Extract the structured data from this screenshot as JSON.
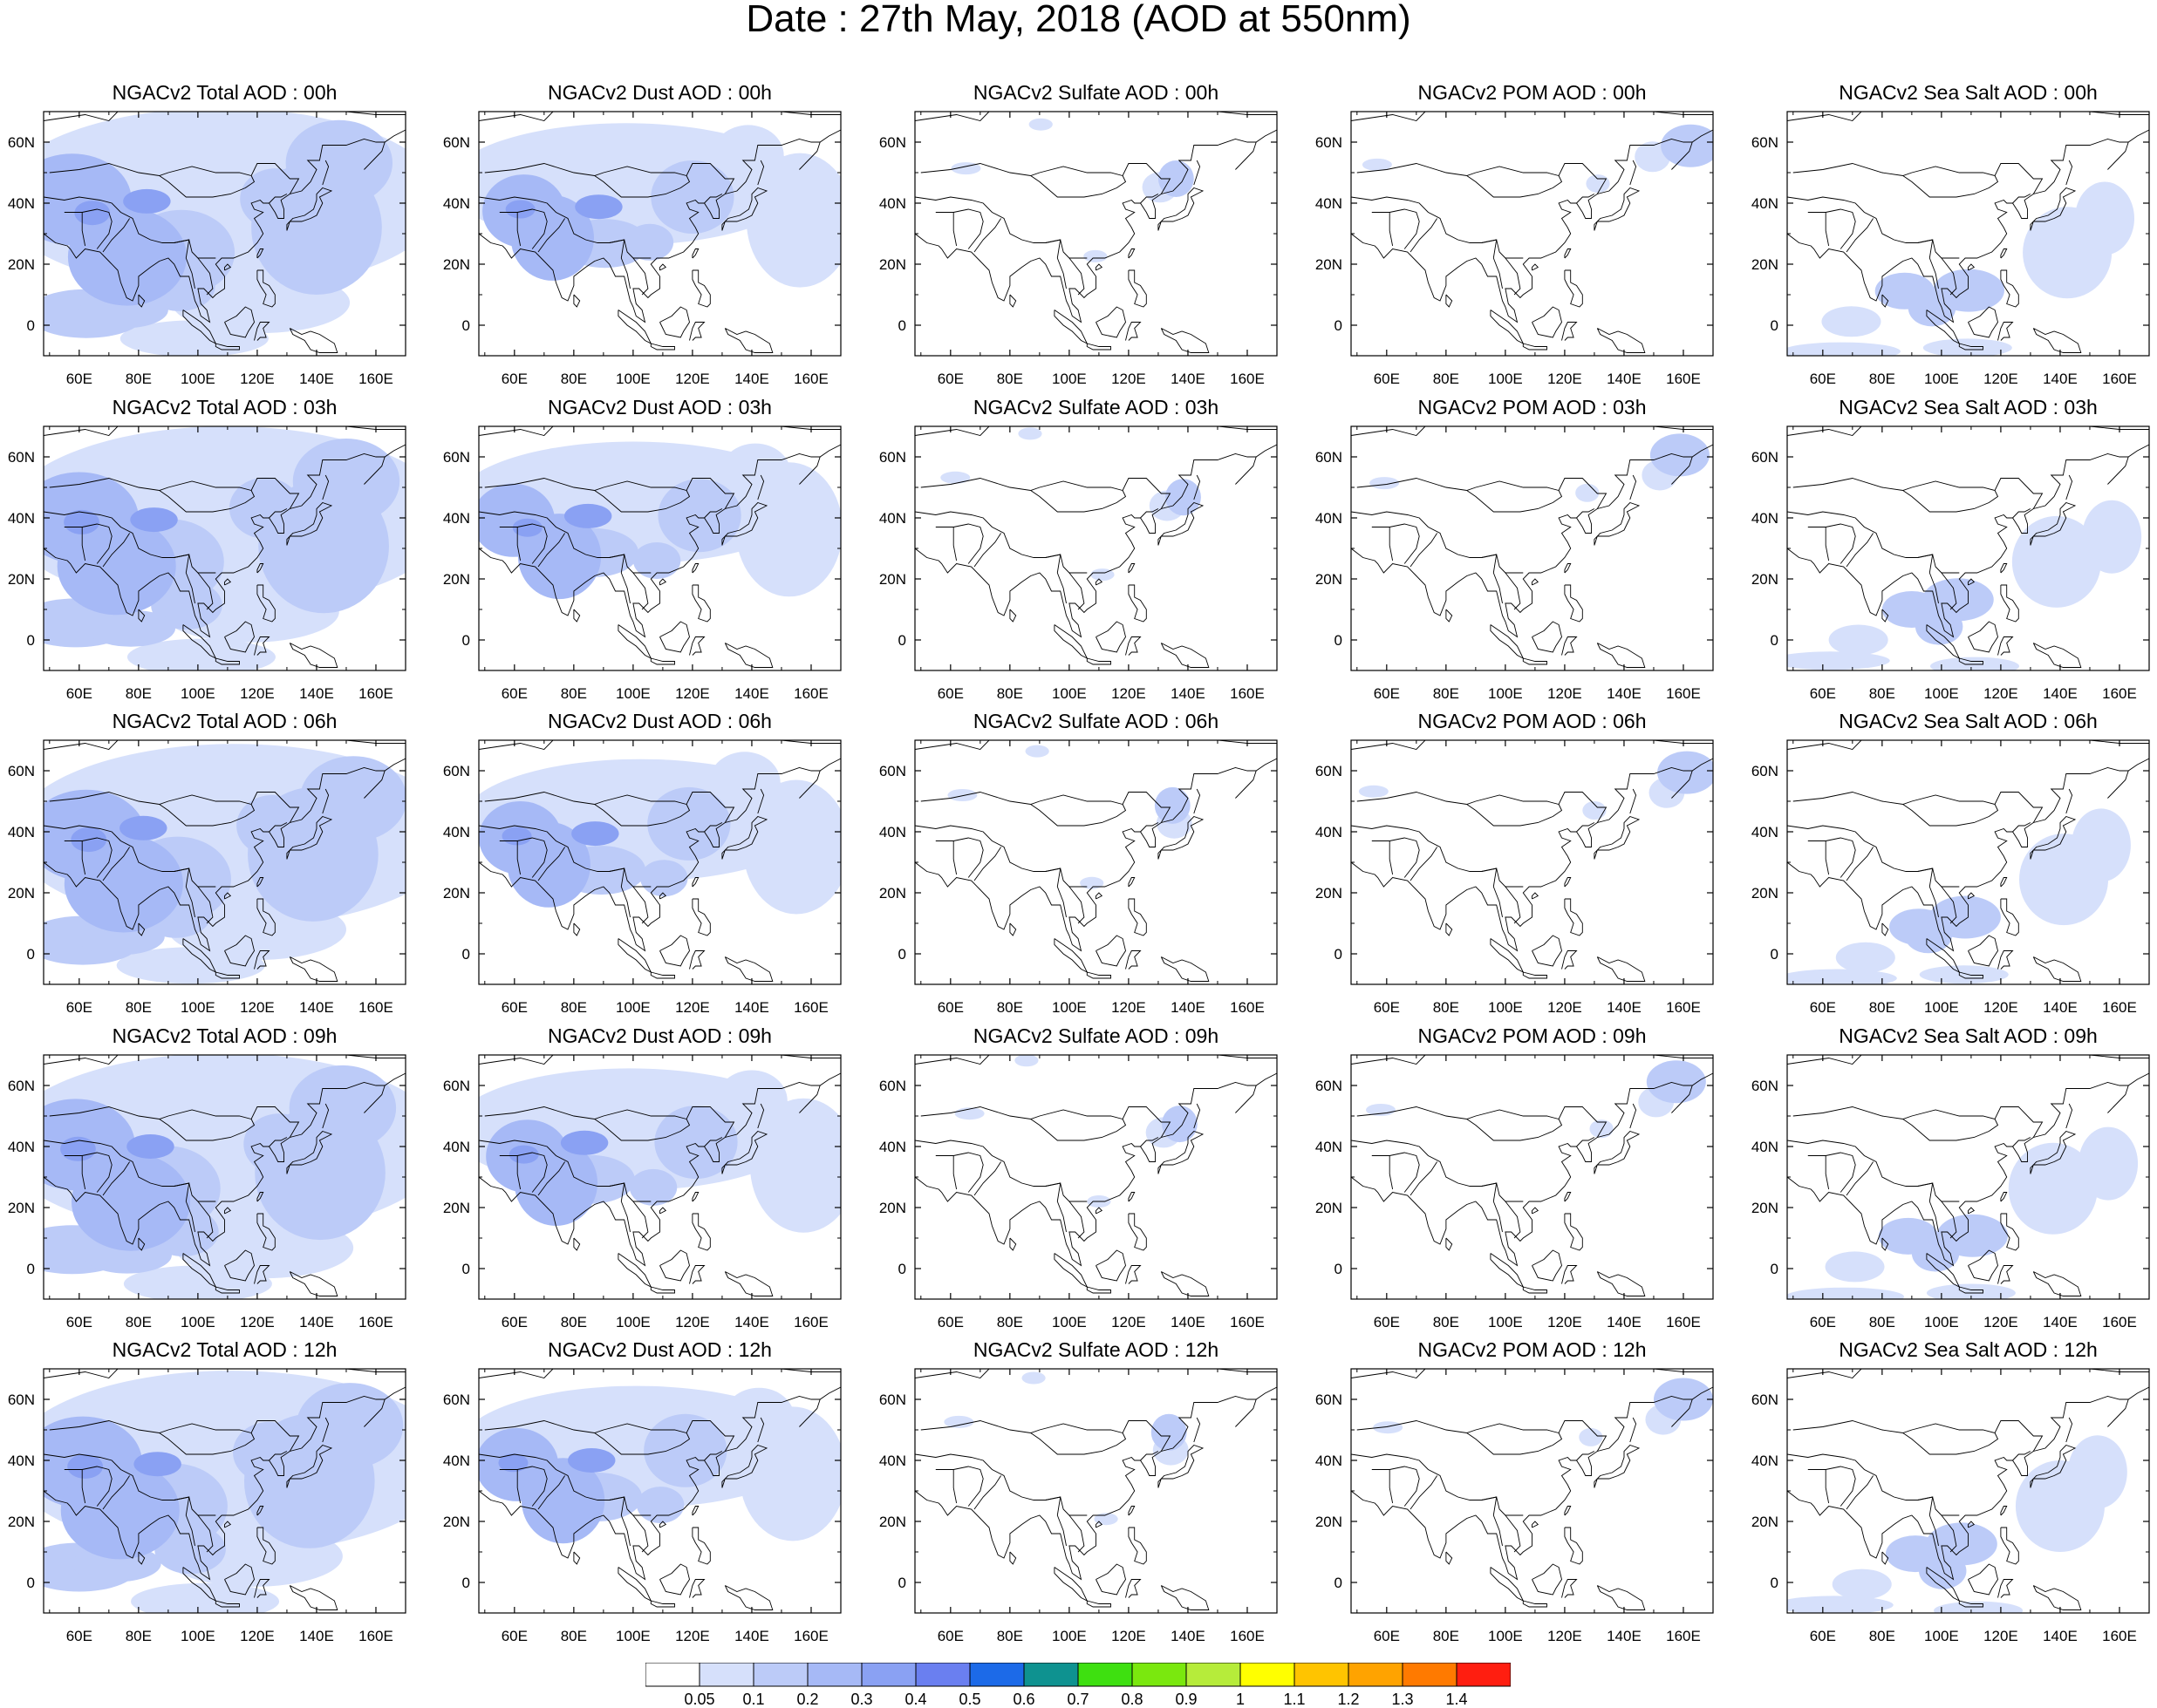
{
  "title": "Date : 27th May, 2018 (AOD at 550nm)",
  "map": {
    "region": "Asia",
    "lon_range": [
      48,
      170
    ],
    "lat_range": [
      -10,
      70
    ],
    "lon_ticks": [
      "60E",
      "80E",
      "100E",
      "120E",
      "140E",
      "160E"
    ],
    "lat_ticks": [
      "0",
      "20N",
      "40N",
      "60N"
    ]
  },
  "panel_titles": [
    [
      "NGACv2 Total AOD : 00h",
      "NGACv2 Dust AOD : 00h",
      "NGACv2 Sulfate AOD : 00h",
      "NGACv2 POM AOD : 00h",
      "NGACv2 Sea Salt AOD : 00h"
    ],
    [
      "NGACv2 Total AOD : 03h",
      "NGACv2 Dust AOD : 03h",
      "NGACv2 Sulfate AOD : 03h",
      "NGACv2 POM AOD : 03h",
      "NGACv2 Sea Salt AOD : 03h"
    ],
    [
      "NGACv2 Total AOD : 06h",
      "NGACv2 Dust AOD : 06h",
      "NGACv2 Sulfate AOD : 06h",
      "NGACv2 POM AOD : 06h",
      "NGACv2 Sea Salt AOD : 06h"
    ],
    [
      "NGACv2 Total AOD : 09h",
      "NGACv2 Dust AOD : 09h",
      "NGACv2 Sulfate AOD : 09h",
      "NGACv2 POM AOD : 09h",
      "NGACv2 Sea Salt  AOD : 09h"
    ],
    [
      "NGACv2 Total AOD  : 12h",
      "NGACv2 Dust AOD : 12h",
      "NGACv2 Sulfate AOD : 12h",
      "NGACv2 POM  AOD : 12h",
      "NGACv2 Sea Salt  AOD : 12h"
    ]
  ],
  "colorbar": {
    "labels": [
      "0.05",
      "0.1",
      "0.2",
      "0.3",
      "0.4",
      "0.5",
      "0.6",
      "0.7",
      "0.8",
      "0.9",
      "1",
      "1.1",
      "1.2",
      "1.3",
      "1.4"
    ],
    "colors": [
      "#ffffff",
      "#d6e0fb",
      "#bccbf8",
      "#a6b9f6",
      "#8aa1f3",
      "#6a7ff0",
      "#1c6ae8",
      "#0e9290",
      "#3ee010",
      "#7ae80e",
      "#b6ec3a",
      "#ffff00",
      "#ffc400",
      "#ffa300",
      "#ff7a00",
      "#ff1e10"
    ]
  }
}
